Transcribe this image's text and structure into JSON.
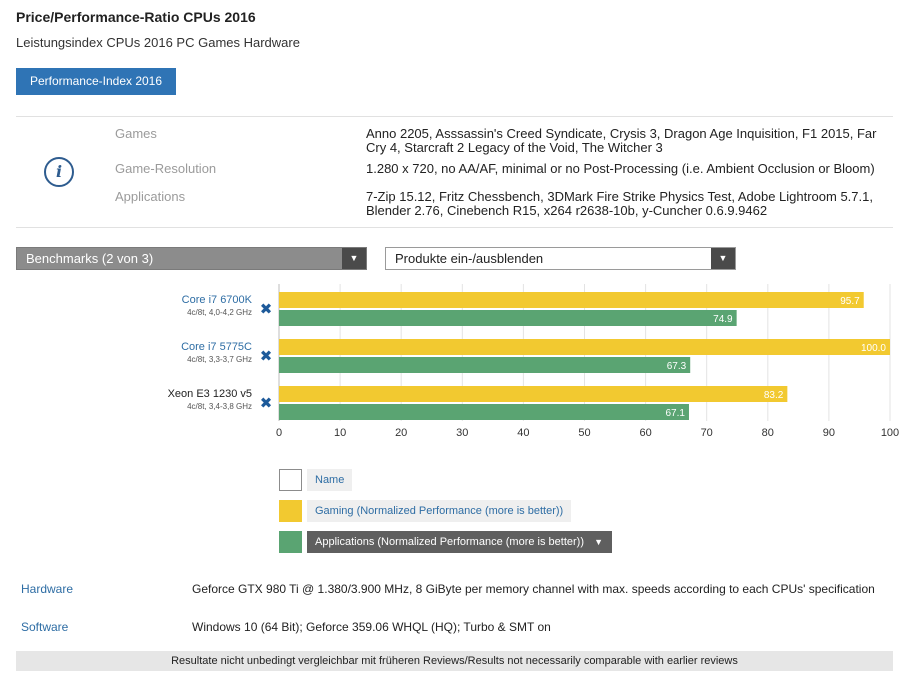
{
  "page": {
    "title": "Price/Performance-Ratio CPUs 2016",
    "subtitle": "Leistungsindex CPUs 2016 PC Games Hardware",
    "index_button": "Performance-Index 2016"
  },
  "info": {
    "rows": [
      {
        "label": "Games",
        "value": "Anno 2205, Asssassin's Creed Syndicate, Crysis 3, Dragon Age Inquisition, F1 2015, Far Cry 4, Starcraft 2 Legacy of the Void, The Witcher 3"
      },
      {
        "label": "Game-Resolution",
        "value": "1.280 x 720, no AA/AF, minimal or no Post-Processing (i.e. Ambient Occlusion or Bloom)"
      },
      {
        "label": "Applications",
        "value": "7-Zip 15.12, Fritz Chessbench, 3DMark Fire Strike Physics Test, Adobe Lightroom 5.7.1, Blender 2.76, Cinebench R15, x264 r2638-10b, y-Cuncher 0.6.9.9462"
      }
    ]
  },
  "controls": {
    "benchmarks_label": "Benchmarks (2 von 3)",
    "products_label": "Produkte ein-/ausblenden"
  },
  "chart_data": {
    "type": "bar",
    "orientation": "horizontal",
    "categories": [
      "Core i7 6700K",
      "Core i7 5775C",
      "Xeon E3 1230 v5"
    ],
    "category_details": [
      "4c/8t, 4,0-4,2 GHz",
      "4c/8t, 3,3-3,7 GHz",
      "4c/8t, 3,4-3,8 GHz"
    ],
    "category_is_link": [
      true,
      true,
      false
    ],
    "series": [
      {
        "name": "Gaming (Normalized Performance (more is better))",
        "color": "#f2c930",
        "values": [
          95.7,
          100.0,
          83.2
        ]
      },
      {
        "name": "Applications (Normalized Performance (more is better))",
        "color": "#5aa472",
        "values": [
          74.9,
          67.3,
          67.1
        ]
      }
    ],
    "xlim": [
      0,
      100
    ],
    "xticks": [
      0,
      10,
      20,
      30,
      40,
      50,
      60,
      70,
      80,
      90,
      100
    ],
    "grid": true,
    "value_format": "0.0"
  },
  "legend": {
    "name_label": "Name",
    "gaming_label": "Gaming (Normalized Performance (more is better))",
    "applications_label": "Applications (Normalized Performance (more is better))"
  },
  "meta": {
    "hardware_label": "Hardware",
    "hardware_value": "Geforce GTX 980 Ti @ 1.380/3.900 MHz, 8 GiByte per memory channel with max. speeds according to each CPUs' specification",
    "software_label": "Software",
    "software_value": "Windows 10 (64 Bit); Geforce 359.06 WHQL (HQ); Turbo & SMT on",
    "footer_note": "Resultate nicht unbedingt vergleichbar mit früheren Reviews/Results not necessarily comparable with earlier reviews"
  },
  "colors": {
    "accent": "#2f74b5",
    "link": "#2e6da4",
    "remove_icon": "#1d5a9a"
  },
  "icons": {
    "info": "info-icon",
    "remove": "remove-icon",
    "dropdown": "chevron-down-icon"
  }
}
